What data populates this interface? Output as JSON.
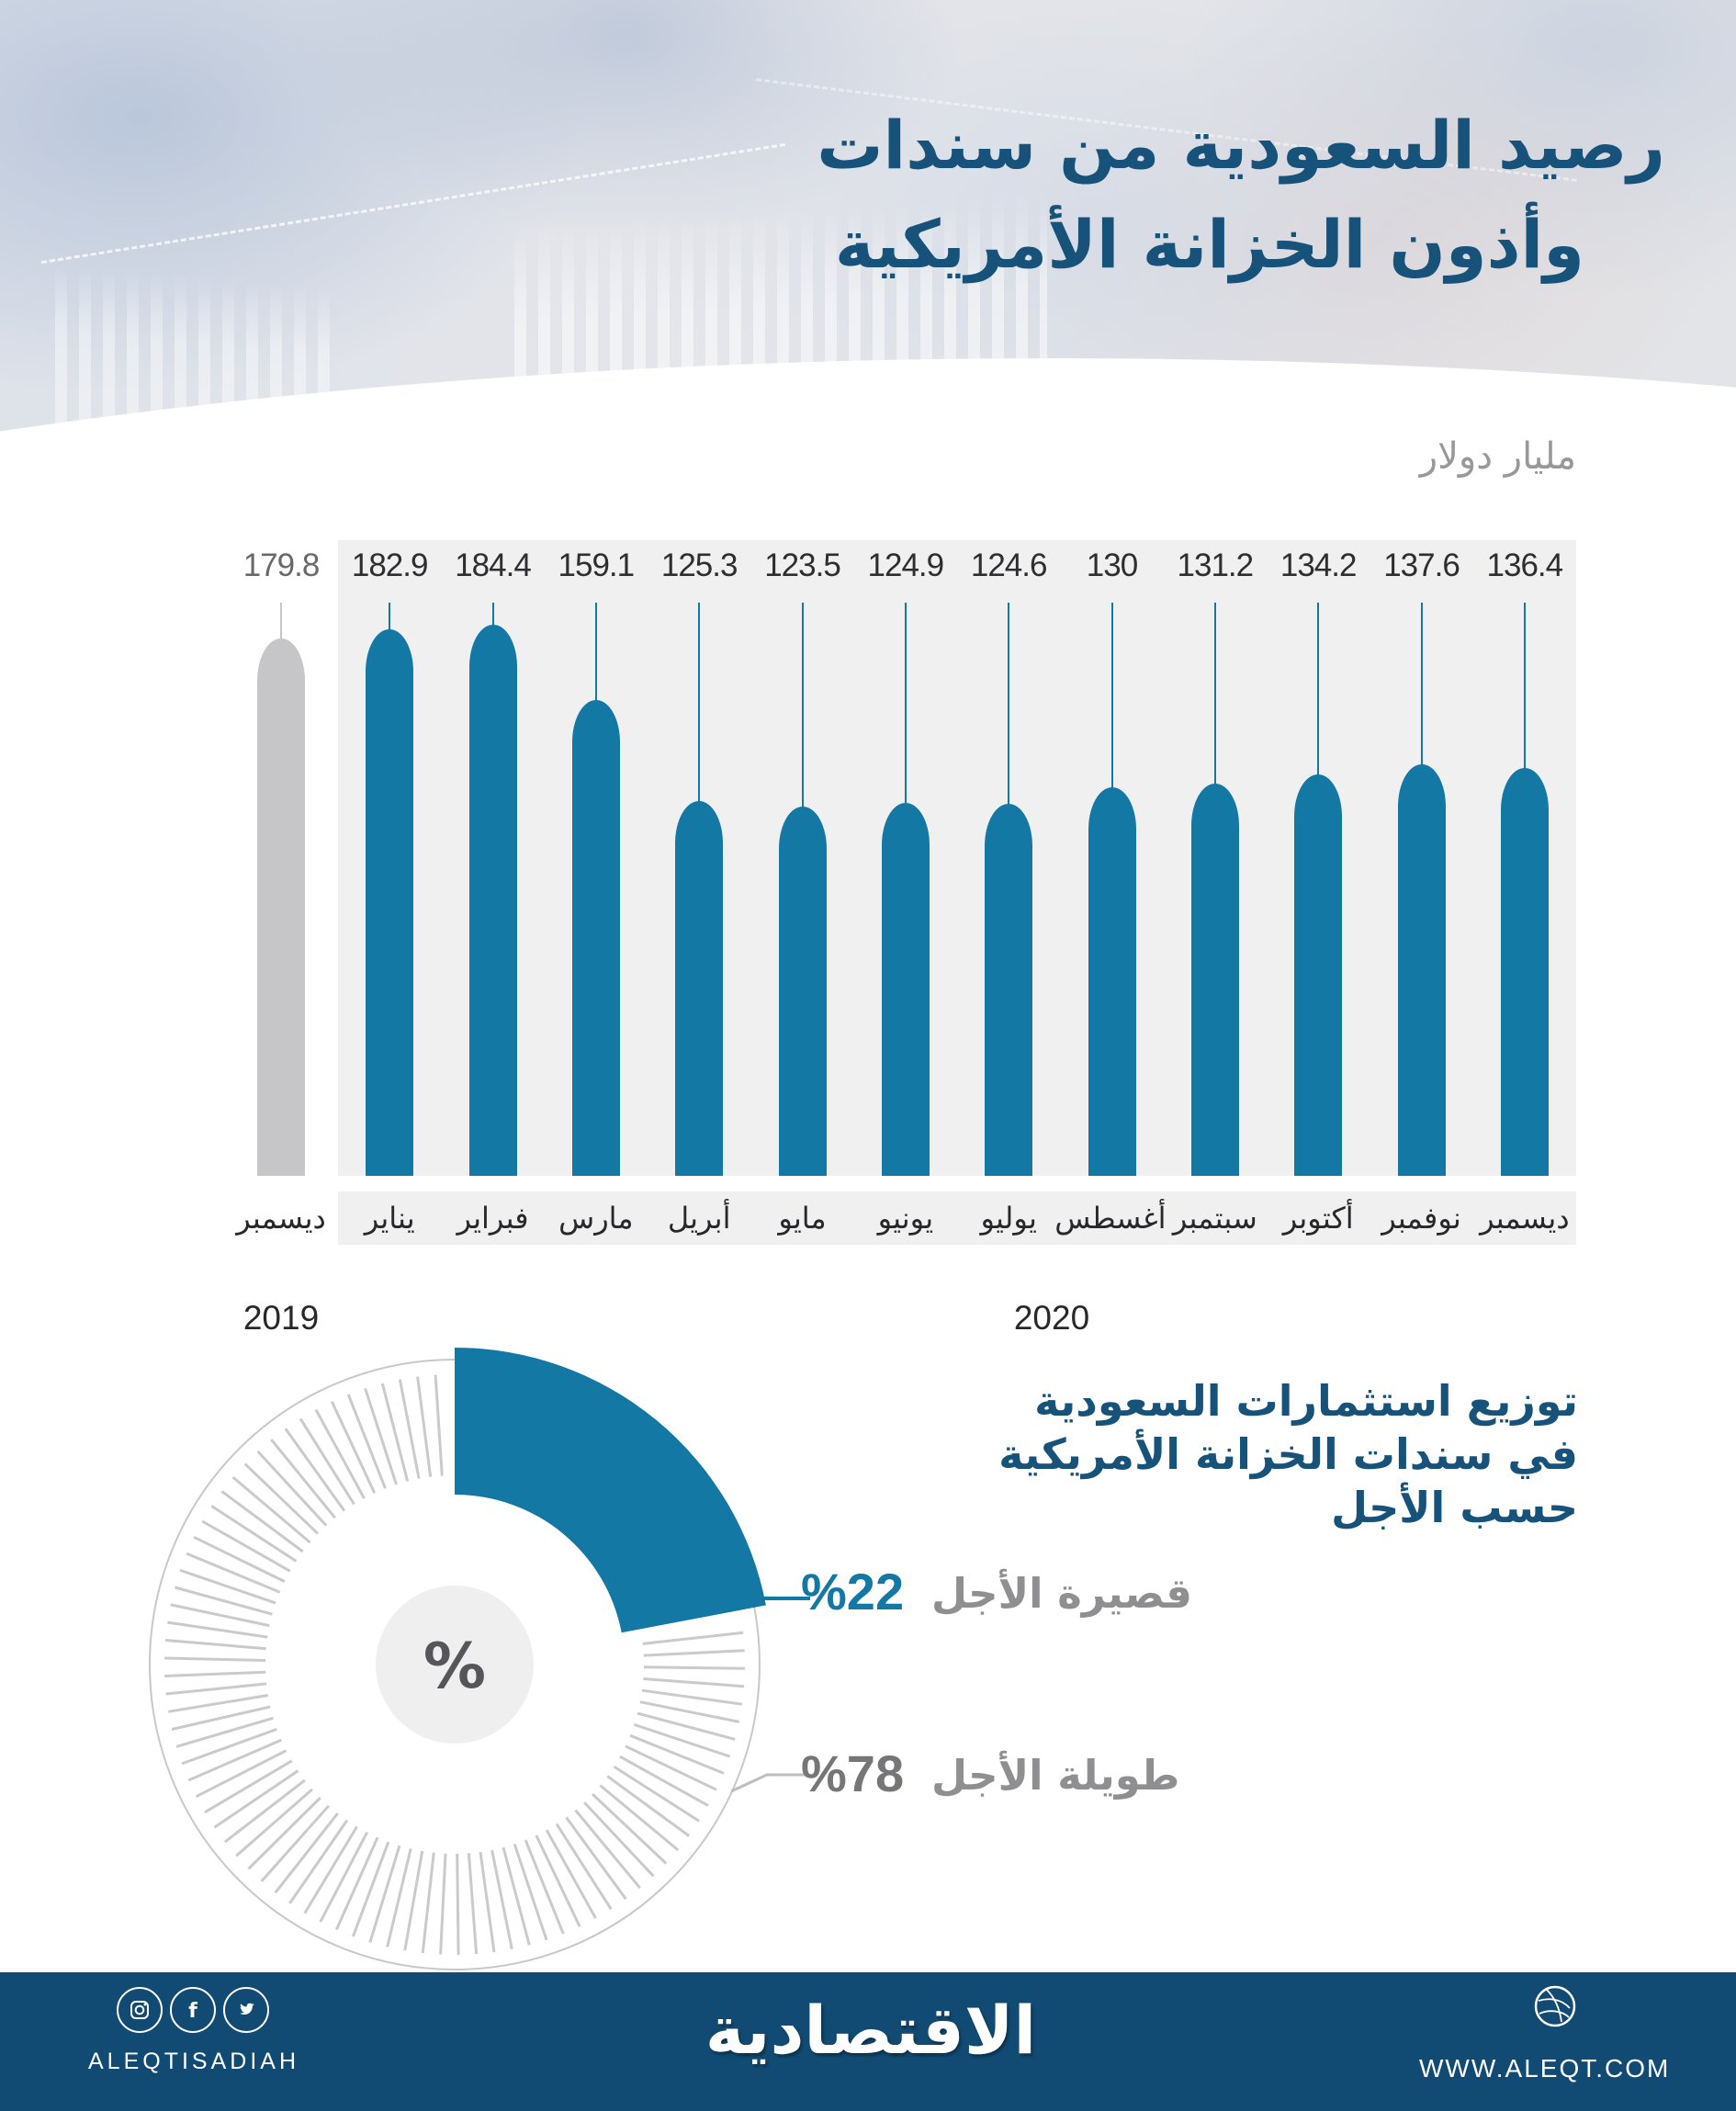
{
  "header": {
    "title_line1": "رصيد السعودية من سندات",
    "title_line2": "وأذون الخزانة الأمريكية",
    "units_label": "مليار دولار"
  },
  "chart_data": [
    {
      "type": "bar",
      "title": "رصيد السعودية من سندات وأذون الخزانة الأمريكية",
      "ylabel": "مليار دولار",
      "categories": [
        "ديسمبر",
        "يناير",
        "فبراير",
        "مارس",
        "أبريل",
        "مايو",
        "يونيو",
        "يوليو",
        "أغسطس",
        "سبتمبر",
        "أكتوبر",
        "نوفمبر",
        "ديسمبر"
      ],
      "values": [
        179.8,
        182.9,
        184.4,
        159.1,
        125.3,
        123.5,
        124.9,
        124.6,
        130,
        131.2,
        134.2,
        137.6,
        136.4
      ],
      "value_labels": [
        "179.8",
        "182.9",
        "184.4",
        "159.1",
        "125.3",
        "123.5",
        "124.9",
        "124.6",
        "130",
        "131.2",
        "134.2",
        "137.6",
        "136.4"
      ],
      "year_groups": [
        {
          "label": "2019",
          "months": 1
        },
        {
          "label": "2020",
          "months": 12
        }
      ],
      "ymax": 184.4,
      "highlight_color": "#1478A4",
      "muted_color": "#C6C6C8",
      "grid": false,
      "legend": "none"
    },
    {
      "type": "pie",
      "title": "توزيع استثمارات السعودية في سندات الخزانة الأمريكية حسب الأجل",
      "labels": [
        "قصيرة الأجل",
        "طويلة الأجل"
      ],
      "values": [
        22,
        78
      ],
      "display_values": [
        "%22",
        "%78"
      ],
      "colors": [
        "#1478A4",
        "#C9C9CB"
      ],
      "center_symbol": "%",
      "start_angle": 0,
      "direction": "clockwise"
    }
  ],
  "donut": {
    "title_lines": [
      "توزيع استثمارات السعودية",
      "في سندات الخزانة الأمريكية",
      "حسب الأجل"
    ],
    "center_symbol": "%",
    "slices": [
      {
        "label": "قصيرة الأجل",
        "pct": 22,
        "display": "%22",
        "color": "#1478A4"
      },
      {
        "label": "طويلة الأجل",
        "pct": 78,
        "display": "%78",
        "color": "#C9C9CB"
      }
    ]
  },
  "footer": {
    "handle": "ALEQTISADIAH",
    "logo": "الاقتصادية",
    "url": "WWW.ALEQT.COM",
    "icons": [
      "instagram",
      "facebook",
      "twitter",
      "dribbble"
    ],
    "bg_color": "#114B74"
  }
}
